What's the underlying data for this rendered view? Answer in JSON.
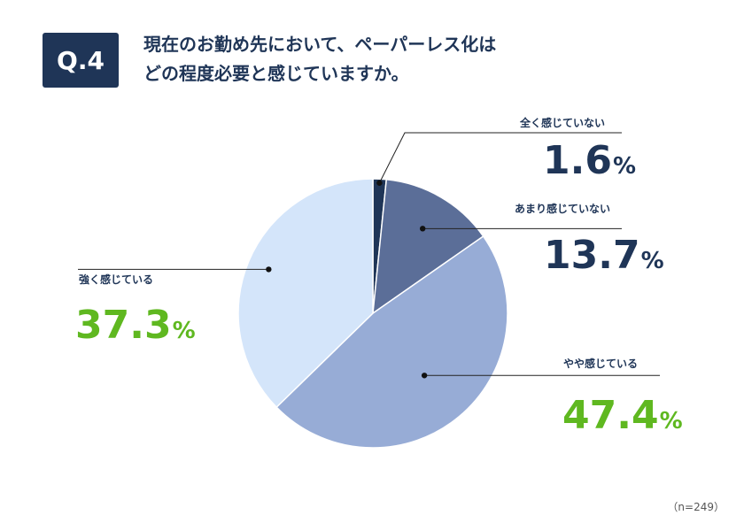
{
  "question": {
    "badge": "Q.4",
    "line1": "現在のお勤め先において、ペーパーレス化は",
    "line2": "どの程度必要と感じていますか。"
  },
  "sample_note": "（n=249）",
  "unit": "%",
  "colors": {
    "accent_dark": "#1f3557",
    "accent_green": "#5fb820"
  },
  "chart_data": {
    "type": "pie",
    "start": "12 o'clock, clockwise",
    "slices": [
      {
        "label": "全く感じていない",
        "value": 1.6,
        "display": "1.6",
        "color": "#1f3557",
        "value_color": "dark"
      },
      {
        "label": "あまり感じていない",
        "value": 13.7,
        "display": "13.7",
        "color": "#5b6e98",
        "value_color": "dark"
      },
      {
        "label": "やや感じている",
        "value": 47.4,
        "display": "47.4",
        "color": "#97acd6",
        "value_color": "green"
      },
      {
        "label": "強く感じている",
        "value": 37.3,
        "display": "37.3",
        "color": "#d4e5fa",
        "value_color": "green"
      }
    ]
  }
}
